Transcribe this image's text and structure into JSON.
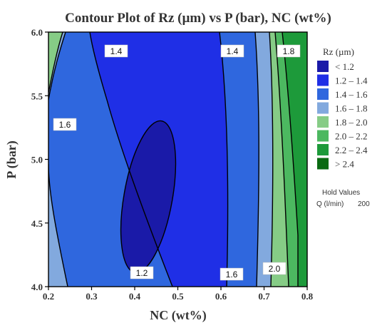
{
  "chart_data": {
    "type": "contour",
    "title": "Contour Plot of Rz (µm) vs P (bar), NC (wt%)",
    "xlabel": "NC (wt%)",
    "ylabel": "P (bar)",
    "xlim": [
      0.2,
      0.8
    ],
    "ylim": [
      4.0,
      6.0
    ],
    "x_ticks": [
      "0.2",
      "0.3",
      "0.4",
      "0.5",
      "0.6",
      "0.7",
      "0.8"
    ],
    "y_ticks": [
      "4.0",
      "4.5",
      "5.0",
      "5.5",
      "6.0"
    ],
    "legend": {
      "title": "Rz (µm)",
      "placement": "right",
      "entries": [
        {
          "label": "< 1.2",
          "color": "#1a1aa8"
        },
        {
          "label": "1.2 – 1.4",
          "color": "#1f2fe6"
        },
        {
          "label": "1.4 – 1.6",
          "color": "#2f67de"
        },
        {
          "label": "1.6 – 1.8",
          "color": "#82a9de"
        },
        {
          "label": "1.8 – 2.0",
          "color": "#86cc86"
        },
        {
          "label": "2.0 – 2.2",
          "color": "#4cb860"
        },
        {
          "label": "2.2 – 2.4",
          "color": "#1d9a3a"
        },
        {
          "label": "> 2.4",
          "color": "#0a6a12"
        }
      ]
    },
    "hold_values": {
      "heading": "Hold Values",
      "name": "Q (l/min)",
      "value": "200"
    },
    "contour_labels": [
      "1.2",
      "1.4",
      "1.4",
      "1.6",
      "1.6",
      "1.8",
      "2.0"
    ]
  }
}
